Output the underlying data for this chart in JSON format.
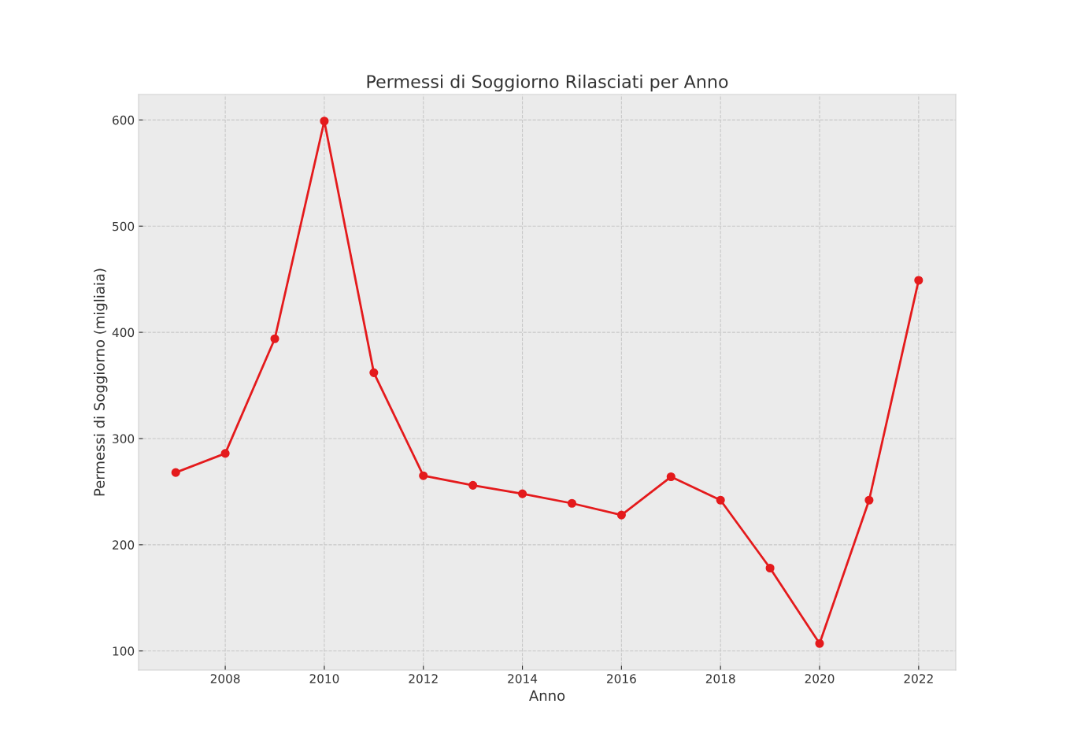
{
  "chart_data": {
    "type": "line",
    "title": "Permessi di Soggiorno Rilasciati per Anno",
    "xlabel": "Anno",
    "ylabel": "Permessi di Soggiorno (migliaia)",
    "x": [
      2007,
      2008,
      2009,
      2010,
      2011,
      2012,
      2013,
      2014,
      2015,
      2016,
      2017,
      2018,
      2019,
      2020,
      2021,
      2022
    ],
    "series": [
      {
        "color": "#e41a1c",
        "values": [
          268,
          286,
          394,
          599,
          362,
          265,
          256,
          248,
          239,
          228,
          264,
          242,
          178,
          107,
          242,
          449
        ]
      }
    ],
    "xlim": [
      2006.25,
      2022.75
    ],
    "xticks": [
      2008,
      2010,
      2012,
      2014,
      2016,
      2018,
      2020,
      2022
    ],
    "ylim": [
      82,
      624
    ],
    "yticks": [
      100,
      200,
      300,
      400,
      500,
      600
    ],
    "grid": true,
    "marker": "circle",
    "line_style": "solid"
  }
}
